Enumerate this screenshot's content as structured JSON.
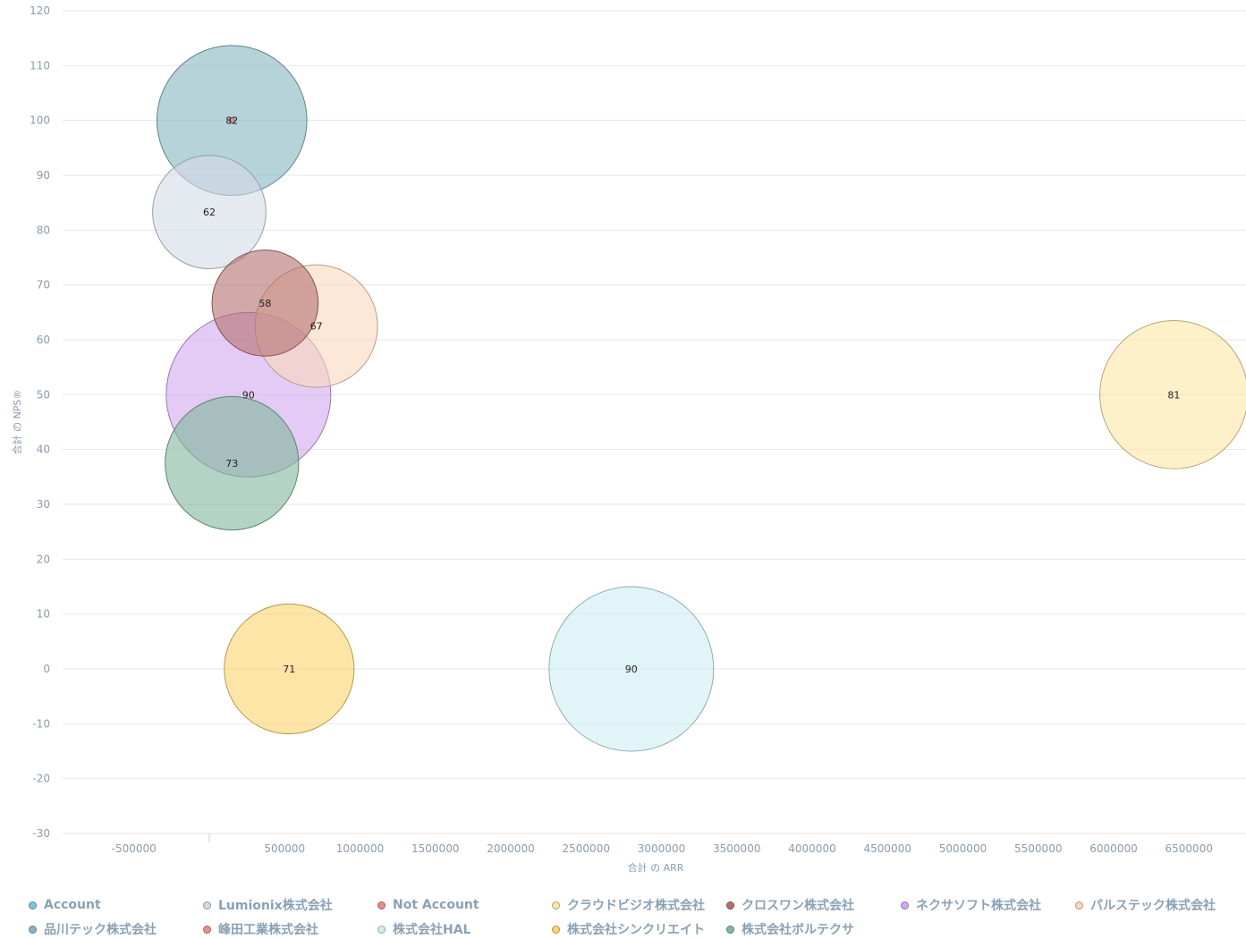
{
  "chart_data": {
    "type": "bubble",
    "xlabel": "合計 の ARR",
    "ylabel": "合計 の NPS®",
    "xlim": [
      -950000,
      6850000
    ],
    "ylim": [
      -30,
      120
    ],
    "x_ticks": [
      {
        "value": -500000,
        "label": "-500000"
      },
      {
        "value": 500000,
        "label": "500000"
      },
      {
        "value": 1000000,
        "label": "1000000"
      },
      {
        "value": 1500000,
        "label": "1500000"
      },
      {
        "value": 2000000,
        "label": "2000000"
      },
      {
        "value": 2500000,
        "label": "2500000"
      },
      {
        "value": 3000000,
        "label": "3000000"
      },
      {
        "value": 3500000,
        "label": "3500000"
      },
      {
        "value": 4000000,
        "label": "4000000"
      },
      {
        "value": 4500000,
        "label": "4500000"
      },
      {
        "value": 5000000,
        "label": "5000000"
      },
      {
        "value": 5500000,
        "label": "5500000"
      },
      {
        "value": 6000000,
        "label": "6000000"
      },
      {
        "value": 6500000,
        "label": "6500000"
      }
    ],
    "y_ticks": [
      {
        "value": 120,
        "label": "120"
      },
      {
        "value": 110,
        "label": "110"
      },
      {
        "value": 100,
        "label": "100"
      },
      {
        "value": 90,
        "label": "90"
      },
      {
        "value": 80,
        "label": "80"
      },
      {
        "value": 70,
        "label": "70"
      },
      {
        "value": 60,
        "label": "60"
      },
      {
        "value": 50,
        "label": "50"
      },
      {
        "value": 40,
        "label": "40"
      },
      {
        "value": 30,
        "label": "30"
      },
      {
        "value": 20,
        "label": "20"
      },
      {
        "value": 10,
        "label": "10"
      },
      {
        "value": 0,
        "label": "0"
      },
      {
        "value": -10,
        "label": "-10"
      },
      {
        "value": -20,
        "label": "-20"
      },
      {
        "value": -30,
        "label": "-30"
      }
    ],
    "grid": true,
    "legend_position": "bottom",
    "series": [
      {
        "name": "Account",
        "color": "#7cc4e0",
        "x": 150000,
        "y": 100,
        "size": 2,
        "label": ""
      },
      {
        "name": "Lumionix株式会社",
        "color": "#d3dbe6",
        "x": 0,
        "y": 83.3,
        "size": 62,
        "label": "62"
      },
      {
        "name": "Not Account",
        "color": "#ec8c8c",
        "x": 150000,
        "y": 100,
        "size": 2,
        "label": ""
      },
      {
        "name": "クラウドビジオ株式会社",
        "color": "#fde7a6",
        "x": 6400000,
        "y": 50,
        "size": 81,
        "label": "81"
      },
      {
        "name": "クロスワン株式会社",
        "color": "#b4706f",
        "x": 370000,
        "y": 66.7,
        "size": 58,
        "label": "58"
      },
      {
        "name": "ネクサソフト株式会社",
        "color": "#d2a8ee",
        "x": 260000,
        "y": 50,
        "size": 90,
        "label": "90"
      },
      {
        "name": "パルステック株式会社",
        "color": "#fcd9bd",
        "x": 710000,
        "y": 62.5,
        "size": 67,
        "label": "67"
      },
      {
        "name": "品川テック株式会社",
        "color": "#86b5c1",
        "x": 150000,
        "y": 100,
        "size": 82,
        "label": "82"
      },
      {
        "name": "峰田工業株式会社",
        "color": "#ec8c8c",
        "x": 150000,
        "y": 100,
        "size": 2,
        "label": ""
      },
      {
        "name": "株式会社HAL",
        "color": "#cdeef3",
        "x": 2800000,
        "y": 0,
        "size": 90,
        "label": "90"
      },
      {
        "name": "株式会社シンクリエイト",
        "color": "#fbd46d",
        "x": 530000,
        "y": 0,
        "size": 71,
        "label": "71"
      },
      {
        "name": "株式会社ボルテクサ",
        "color": "#80b79c",
        "x": 150000,
        "y": 37.5,
        "size": 73,
        "label": "73"
      }
    ]
  }
}
